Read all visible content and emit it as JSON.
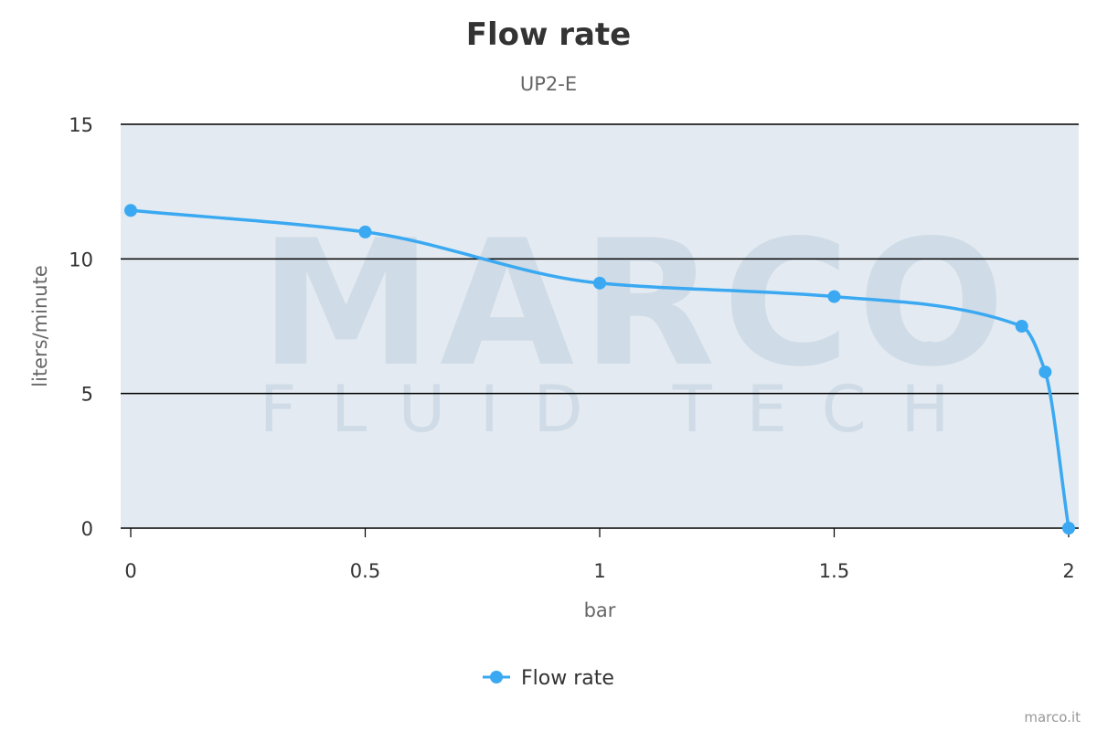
{
  "chart_data": {
    "type": "line",
    "title": "Flow rate",
    "subtitle": "UP2-E",
    "xlabel": "bar",
    "ylabel": "liters/minute",
    "xlim": [
      0,
      2
    ],
    "ylim": [
      0,
      15
    ],
    "x_ticks": [
      "0",
      "0.5",
      "1",
      "1.5",
      "2"
    ],
    "y_ticks": [
      "0",
      "5",
      "10",
      "15"
    ],
    "grid": true,
    "legend_position": "bottom-center",
    "series": [
      {
        "name": "Flow rate",
        "color": "#3aa9f2",
        "x": [
          0,
          0.5,
          1,
          1.5,
          1.9,
          1.95,
          2
        ],
        "y": [
          11.8,
          11,
          9.1,
          8.6,
          7.5,
          5.8,
          0
        ]
      }
    ]
  },
  "watermark": {
    "brand": "MARCO",
    "tagline": "FLUID TECH",
    "registered": "®"
  },
  "credits": "marco.it",
  "colors": {
    "plot_background": "#e3eaf1",
    "grid": "#000000",
    "series": "#3aa9f2"
  }
}
